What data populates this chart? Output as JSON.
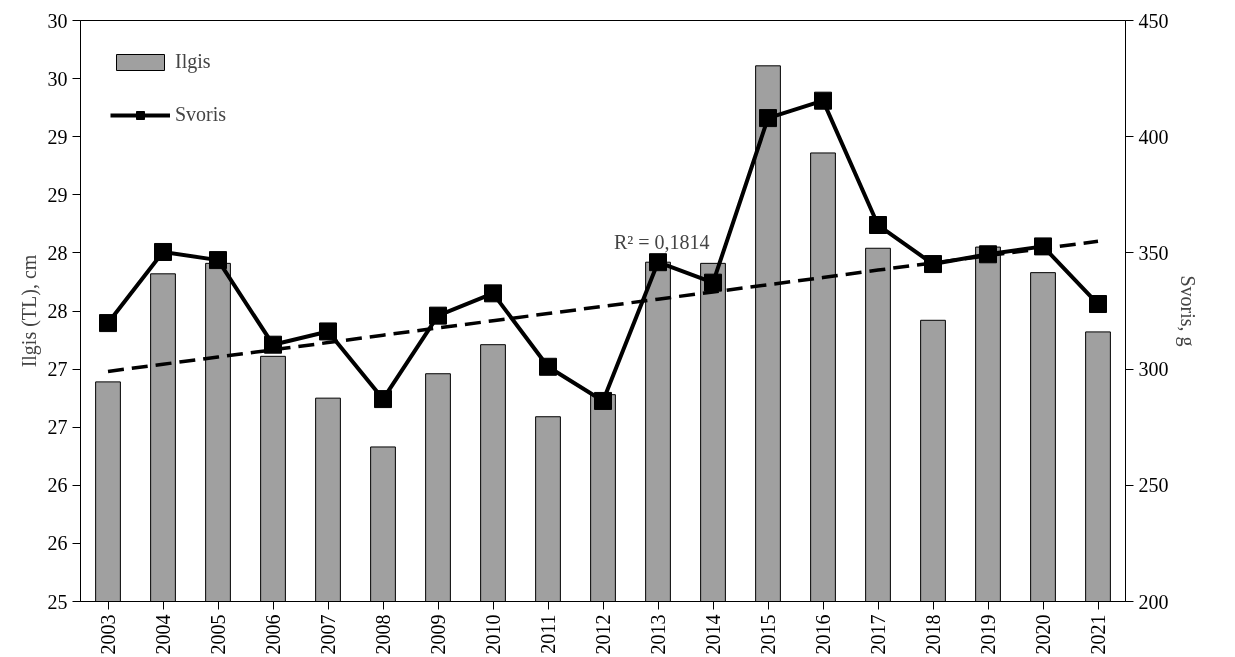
{
  "chart_data": {
    "type": "bar",
    "categories": [
      "2003",
      "2004",
      "2005",
      "2006",
      "2007",
      "2008",
      "2009",
      "2010",
      "2011",
      "2012",
      "2013",
      "2014",
      "2015",
      "2016",
      "2017",
      "2018",
      "2019",
      "2020",
      "2021"
    ],
    "ylabel": "Ilgis (TL), cm",
    "y2label": "Svoris, g",
    "ylim": [
      25,
      30
    ],
    "yticks": [
      25,
      {
        "value": 25.5,
        "label": "26"
      },
      26,
      {
        "value": 26.5,
        "label": "27"
      },
      27,
      {
        "value": 27.5,
        "label": "28"
      },
      28,
      {
        "value": 28.5,
        "label": "29"
      },
      29,
      {
        "value": 29.5,
        "label": "30"
      },
      30
    ],
    "y2lim": [
      200,
      450
    ],
    "y2ticks": [
      200,
      250,
      300,
      350,
      400,
      450
    ],
    "series": [
      {
        "name": "Ilgis",
        "color": "#a0a0a0",
        "values": [
          26.89,
          27.82,
          27.91,
          27.11,
          26.75,
          26.33,
          26.96,
          27.21,
          26.59,
          26.78,
          27.92,
          27.91,
          29.61,
          28.86,
          28.04,
          27.42,
          28.05,
          27.83,
          27.32
        ]
      },
      {
        "name": "Svoris",
        "type": "line",
        "axis": "y2",
        "color": "#000000",
        "marker": "square",
        "values": [
          319.8,
          350.4,
          346.9,
          310.5,
          316.2,
          287.1,
          323,
          332.6,
          301,
          286.3,
          346,
          337.2,
          408,
          415.5,
          362,
          345.2,
          349.4,
          352.8,
          328
        ]
      },
      {
        "type": "line",
        "axis": "y2",
        "color": "#000000",
        "line_style": "dashed",
        "values": [
          299,
          302.1,
          305.2,
          308.3,
          311.4,
          314.6,
          317.7,
          320.8,
          323.9,
          327,
          330.1,
          333.2,
          336.3,
          339.4,
          342.6,
          345.7,
          348.8,
          351.9,
          355
        ]
      }
    ],
    "annotations": [
      "R² = 0,1814"
    ],
    "legend": "top left",
    "grid": false
  }
}
